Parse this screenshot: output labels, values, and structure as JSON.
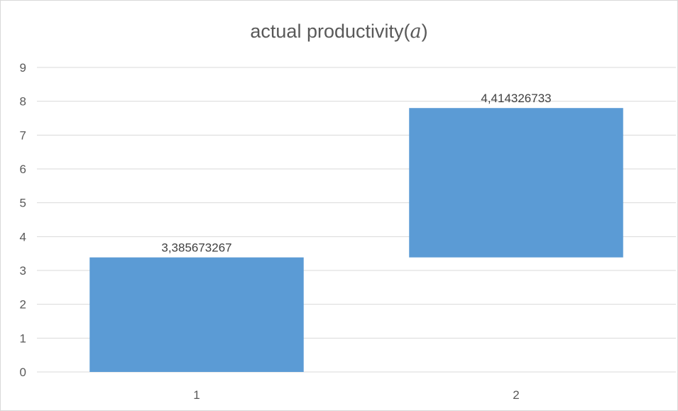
{
  "chart_data": {
    "type": "bar",
    "subtype": "floating",
    "title_text": "actual productivity(",
    "title_variable": "a",
    "title_close": ")",
    "categories": [
      "1",
      "2"
    ],
    "values": [
      3.385673267,
      4.414326733
    ],
    "bases": [
      0,
      3.385673267
    ],
    "data_labels": [
      "3,385673267",
      "4,414326733"
    ],
    "yticks": [
      "0",
      "1",
      "2",
      "3",
      "4",
      "5",
      "6",
      "7",
      "8",
      "9"
    ],
    "ylim": [
      0,
      9
    ],
    "grid": true,
    "legend": "none",
    "bar_color": "#5b9bd5",
    "grid_color": "#d9d9d9"
  }
}
